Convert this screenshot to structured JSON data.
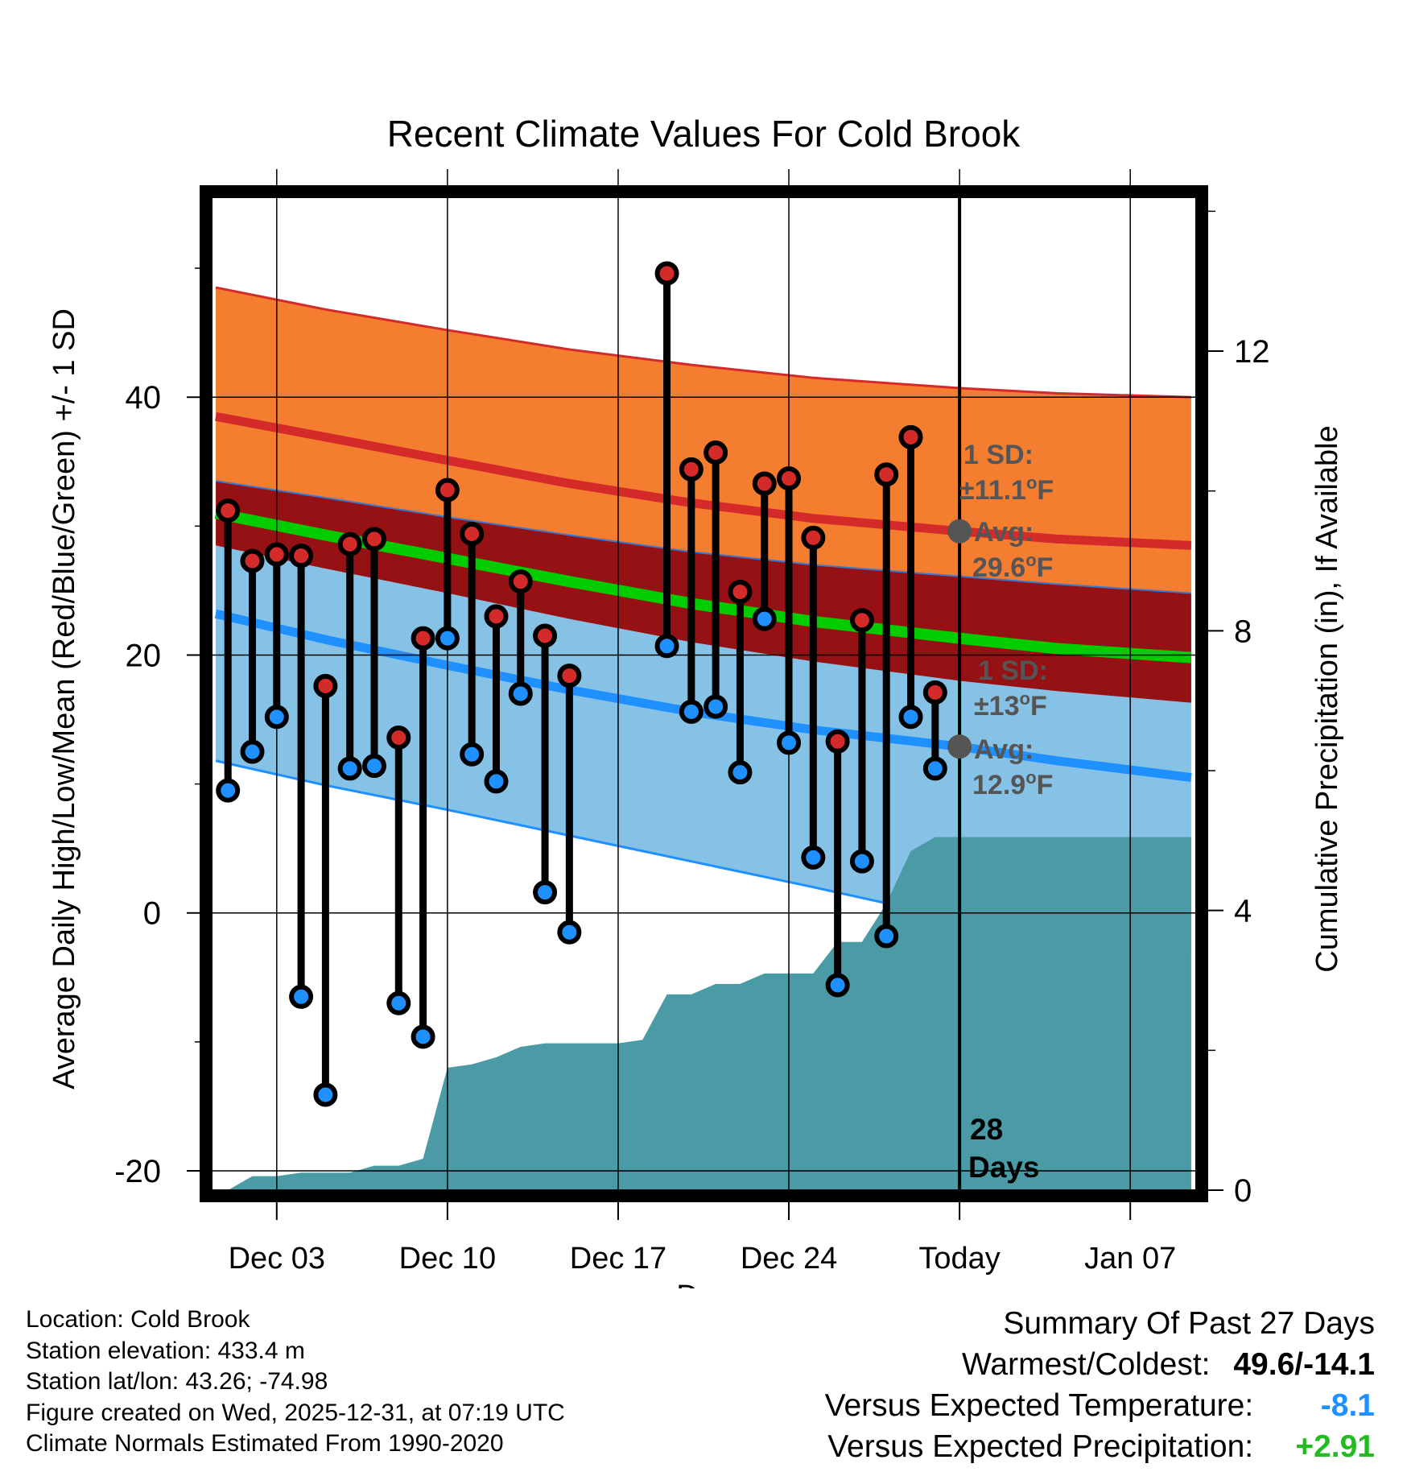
{
  "chart_data": {
    "type": "range-bar-with-climatology",
    "title": "Recent Climate Values For Cold Brook",
    "xlabel": "Day",
    "ylabel_left": "Average Daily High/Low/Mean (Red/Blue/Green) +/- 1 SD",
    "ylabel_right": "Cumulative Precipitation (in), If Available",
    "x_ticks": [
      {
        "day": 3,
        "label": "Dec 03"
      },
      {
        "day": 10,
        "label": "Dec 10"
      },
      {
        "day": 17,
        "label": "Dec 17"
      },
      {
        "day": 24,
        "label": "Dec 24"
      },
      {
        "day": 31,
        "label": "Today"
      },
      {
        "day": 38,
        "label": "Jan 07"
      }
    ],
    "xlim": [
      0.3,
      40.7
    ],
    "ylim_left": [
      -21.5,
      55.5
    ],
    "y_ticks_left": [
      -20,
      0,
      20,
      40
    ],
    "y_tick_labels_left": [
      "-20",
      "0",
      "20",
      "40"
    ],
    "ylim_right": [
      0,
      14.2
    ],
    "y_ticks_right": [
      0,
      4,
      8,
      12
    ],
    "y_tick_labels_right": [
      "0",
      "4",
      "8",
      "12"
    ],
    "today_day": 31,
    "today_label": "28 Days",
    "climatology": {
      "days": [
        0.5,
        5,
        10,
        15,
        20,
        25,
        31,
        35,
        40.5
      ],
      "high_upper": [
        48.5,
        46.8,
        45.2,
        43.7,
        42.5,
        41.5,
        40.7,
        40.3,
        40.0
      ],
      "high_mean": [
        38.5,
        36.9,
        35.1,
        33.3,
        31.8,
        30.6,
        29.6,
        29.0,
        28.5
      ],
      "high_lower": [
        33.5,
        32.2,
        30.7,
        29.3,
        28.0,
        27.0,
        26.1,
        25.5,
        24.8
      ],
      "mean": [
        31.0,
        29.3,
        27.5,
        25.7,
        24.0,
        22.6,
        21.3,
        20.5,
        19.8
      ],
      "low_upper": [
        28.5,
        26.7,
        24.8,
        22.8,
        21.0,
        19.5,
        18.0,
        17.2,
        16.3
      ],
      "low_mean": [
        23.2,
        21.2,
        19.2,
        17.3,
        15.6,
        14.2,
        12.9,
        11.8,
        10.5
      ],
      "low_lower": [
        11.8,
        9.9,
        8.0,
        6.0,
        4.0,
        2.0,
        -0.5,
        -1.8,
        -3.0
      ]
    },
    "annotations": {
      "high_sd": "1 SD:",
      "high_sd_value": "±11.1",
      "high_avg": "Avg:",
      "high_avg_value": "29.6",
      "low_sd": "1 SD:",
      "low_sd_value": "±13",
      "low_avg": "Avg:",
      "low_avg_value": "12.9",
      "unit_sup": "o",
      "unit": "F"
    },
    "series": [
      {
        "name": "High",
        "color": "#d42a2a",
        "days": [
          1,
          2,
          3,
          4,
          5,
          6,
          7,
          8,
          9,
          10,
          11,
          12,
          13,
          14,
          15,
          19,
          20,
          21,
          22,
          23,
          24,
          25,
          26,
          27,
          28,
          29,
          30
        ],
        "values": [
          31.2,
          27.3,
          27.8,
          27.7,
          17.6,
          28.6,
          29.0,
          13.6,
          21.3,
          32.8,
          29.4,
          23.0,
          25.7,
          21.5,
          18.4,
          49.6,
          34.4,
          35.7,
          24.9,
          33.3,
          33.7,
          29.1,
          13.3,
          22.7,
          34.0,
          36.9,
          17.1
        ]
      },
      {
        "name": "Low",
        "color": "#1e90ff",
        "days": [
          1,
          2,
          3,
          4,
          5,
          6,
          7,
          8,
          9,
          10,
          11,
          12,
          13,
          14,
          15,
          19,
          20,
          21,
          22,
          23,
          24,
          25,
          26,
          27,
          28,
          29,
          30
        ],
        "values": [
          9.5,
          12.5,
          15.2,
          -6.5,
          -14.1,
          11.2,
          11.4,
          -7.0,
          -9.6,
          21.3,
          12.3,
          10.2,
          17.0,
          1.6,
          -1.5,
          20.7,
          15.6,
          16.0,
          10.9,
          22.8,
          13.2,
          4.3,
          -5.6,
          4.0,
          -1.8,
          15.2,
          11.2
        ]
      },
      {
        "name": "Cumulative Precipitation",
        "color": "#4a9ba5",
        "days": [
          1,
          2,
          3,
          4,
          5,
          6,
          7,
          8,
          9,
          10,
          11,
          12,
          13,
          14,
          15,
          16,
          17,
          18,
          19,
          20,
          21,
          22,
          23,
          24,
          25,
          26,
          27,
          28,
          29,
          30,
          31,
          40.5
        ],
        "values": [
          0,
          0.2,
          0.2,
          0.25,
          0.25,
          0.25,
          0.35,
          0.35,
          0.45,
          1.75,
          1.8,
          1.9,
          2.05,
          2.1,
          2.1,
          2.1,
          2.1,
          2.15,
          2.8,
          2.8,
          2.95,
          2.95,
          3.1,
          3.1,
          3.1,
          3.55,
          3.55,
          4.1,
          4.85,
          5.05,
          5.05,
          5.05
        ]
      }
    ]
  },
  "info": {
    "location": "Location: Cold Brook",
    "elevation": "Station elevation: 433.4 m",
    "latlon": "Station lat/lon: 43.26; -74.98",
    "created": "Figure created on Wed, 2025-12-31, at 07:19 UTC",
    "normals": "Climate Normals Estimated From 1990-2020"
  },
  "summary": {
    "title": "Summary Of Past 27 Days",
    "warm_cold_label": "Warmest/Coldest:",
    "warm_cold_value": "49.6/-14.1",
    "temp_label": "Versus Expected Temperature:",
    "temp_value": "-8.1",
    "temp_color": "#1e90ff",
    "precip_label": "Versus Expected Precipitation:",
    "precip_value": "+2.91",
    "precip_color": "#22bb22"
  }
}
